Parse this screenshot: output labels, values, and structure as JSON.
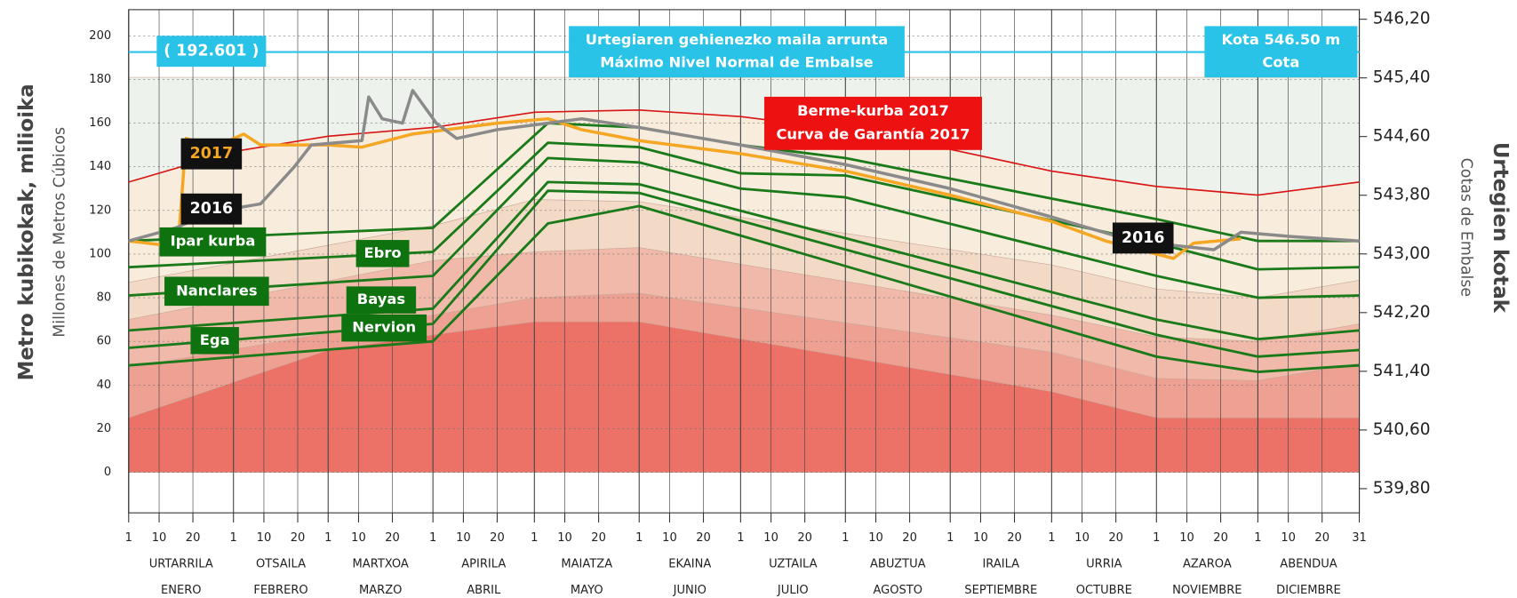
{
  "chart_data": {
    "type": "line",
    "ylabel": "Metro kubikokak, milioika",
    "ylabel_sub": "Millones de Metros Cúbicos",
    "y2label": "Urtegien kotak",
    "y2label_sub": "Cotas de Embalse",
    "xlim": [
      1,
      365
    ],
    "ylim": [
      -18.6,
      212
    ],
    "yticks": [
      0,
      20,
      40,
      60,
      80,
      100,
      120,
      140,
      160,
      180,
      200
    ],
    "y2lim": [
      539.47,
      546.33
    ],
    "y2ticks": [
      {
        "value": 539.8,
        "label": "539,80"
      },
      {
        "value": 540.6,
        "label": "540,60"
      },
      {
        "value": 541.4,
        "label": "541,40"
      },
      {
        "value": 542.2,
        "label": "542,20"
      },
      {
        "value": 543.0,
        "label": "543,00"
      },
      {
        "value": 543.8,
        "label": "543,80"
      },
      {
        "value": 544.6,
        "label": "544,60"
      },
      {
        "value": 545.4,
        "label": "545,40"
      },
      {
        "value": 546.2,
        "label": "546,20"
      }
    ],
    "xticks": [
      1,
      10,
      20,
      {
        "value": 32,
        "label": "1"
      },
      {
        "value": 41,
        "label": "10"
      },
      {
        "value": 51,
        "label": "20"
      },
      {
        "value": 60,
        "label": "1"
      },
      {
        "value": 69,
        "label": "10"
      },
      {
        "value": 79,
        "label": "20"
      },
      {
        "value": 91,
        "label": "1"
      },
      {
        "value": 100,
        "label": "10"
      },
      {
        "value": 110,
        "label": "20"
      },
      {
        "value": 121,
        "label": "1"
      },
      {
        "value": 130,
        "label": "10"
      },
      {
        "value": 140,
        "label": "20"
      },
      {
        "value": 152,
        "label": "1"
      },
      {
        "value": 161,
        "label": "10"
      },
      {
        "value": 171,
        "label": "20"
      },
      {
        "value": 182,
        "label": "1"
      },
      {
        "value": 191,
        "label": "10"
      },
      {
        "value": 201,
        "label": "20"
      },
      {
        "value": 213,
        "label": "1"
      },
      {
        "value": 222,
        "label": "10"
      },
      {
        "value": 232,
        "label": "20"
      },
      {
        "value": 244,
        "label": "1"
      },
      {
        "value": 253,
        "label": "10"
      },
      {
        "value": 263,
        "label": "20"
      },
      {
        "value": 274,
        "label": "1"
      },
      {
        "value": 283,
        "label": "10"
      },
      {
        "value": 293,
        "label": "20"
      },
      {
        "value": 305,
        "label": "1"
      },
      {
        "value": 314,
        "label": "10"
      },
      {
        "value": 324,
        "label": "20"
      },
      {
        "value": 335,
        "label": "1"
      },
      {
        "value": 344,
        "label": "10"
      },
      {
        "value": 354,
        "label": "20"
      },
      {
        "value": 365,
        "label": "31"
      }
    ],
    "months": [
      [
        "URTARRILA",
        "ENERO"
      ],
      [
        "OTSAILA",
        "FEBRERO"
      ],
      [
        "MARTXOA",
        "MARZO"
      ],
      [
        "APIRILA",
        "ABRIL"
      ],
      [
        "MAIATZA",
        "MAYO"
      ],
      [
        "EKAINA",
        "JUNIO"
      ],
      [
        "UZTAILA",
        "JULIO"
      ],
      [
        "ABUZTUA",
        "AGOSTO"
      ],
      [
        "IRAILA",
        "SEPTIEMBRE"
      ],
      [
        "URRIA",
        "OCTUBRE"
      ],
      [
        "AZAROA",
        "NOVIEMBRE"
      ],
      [
        "ABENDUA",
        "DICIEMBRE"
      ]
    ],
    "max_level": {
      "value": 192.601,
      "label": "( 192.601 )",
      "color": "#29c3e8"
    },
    "annotations": {
      "max_eu": "Urtegiaren gehienezko maila arrunta",
      "max_es": "Máximo Nivel Normal de Embalse",
      "kota": "Kota 546.50 m",
      "cota": "Cota"
    },
    "areas": [
      {
        "color": "#edf3ec",
        "x": [
          1,
          365
        ],
        "values": [
          181,
          181
        ]
      },
      {
        "color": "#f8ecdc",
        "x": [
          1,
          32,
          60,
          91,
          121,
          152,
          182,
          213,
          244,
          274,
          305,
          335,
          365
        ],
        "values": [
          133,
          147,
          154,
          158,
          165,
          166,
          163,
          157,
          148,
          138,
          131,
          127,
          133
        ]
      },
      {
        "color": "#f3dac7",
        "x": [
          1,
          91,
          121,
          152,
          274,
          305,
          335,
          365
        ],
        "values": [
          87,
          113,
          125,
          124,
          95,
          84,
          80,
          88
        ]
      },
      {
        "color": "#f0b9a9",
        "x": [
          1,
          91,
          121,
          152,
          274,
          305,
          335,
          365
        ],
        "values": [
          70,
          97,
          101,
          103,
          72,
          62,
          60,
          68
        ]
      },
      {
        "color": "#eea092",
        "x": [
          1,
          91,
          121,
          152,
          274,
          305,
          335,
          365
        ],
        "values": [
          48,
          72,
          80,
          82,
          55,
          43,
          42,
          50
        ]
      },
      {
        "color": "#ec7268",
        "x": [
          1,
          60,
          91,
          121,
          152,
          274,
          305,
          365
        ],
        "values": [
          25,
          56,
          63,
          69,
          69,
          37,
          25,
          25
        ]
      }
    ],
    "series": [
      {
        "label": [
          "Berme-kurba 2017",
          "Curva de Garantía 2017"
        ],
        "color": "#d91414",
        "x": [
          1,
          32,
          60,
          91,
          121,
          152,
          182,
          213,
          244,
          274,
          305,
          335,
          365
        ],
        "values": [
          133,
          147,
          154,
          158,
          165,
          166,
          163,
          157,
          148,
          138,
          131,
          127,
          133
        ]
      },
      {
        "name": "Ipar kurba",
        "color": "#1a7a1a",
        "x": [
          1,
          91,
          125,
          152,
          182,
          213,
          305,
          335,
          365
        ],
        "values": [
          106,
          112,
          160,
          158,
          150,
          144,
          116,
          106,
          106
        ]
      },
      {
        "name": "Ebro",
        "color": "#1a7a1a",
        "x": [
          1,
          91,
          125,
          152,
          182,
          213,
          305,
          335,
          365
        ],
        "values": [
          94,
          101,
          151,
          149,
          137,
          136,
          105,
          93,
          94
        ]
      },
      {
        "name": "Nanclares",
        "color": "#1a7a1a",
        "x": [
          1,
          91,
          125,
          152,
          182,
          213,
          305,
          335,
          365
        ],
        "values": [
          81,
          90,
          144,
          142,
          130,
          126,
          90,
          80,
          81
        ]
      },
      {
        "name": "Bayas",
        "color": "#1a7a1a",
        "x": [
          1,
          91,
          125,
          152,
          305,
          335,
          365
        ],
        "values": [
          65,
          75,
          133,
          132,
          70,
          61,
          65
        ]
      },
      {
        "name": "Nervion",
        "color": "#1a7a1a",
        "x": [
          1,
          91,
          125,
          152,
          305,
          335,
          365
        ],
        "values": [
          57,
          68,
          129,
          128,
          63,
          53,
          56
        ]
      },
      {
        "name": "Ega",
        "color": "#1a7a1a",
        "x": [
          1,
          91,
          125,
          152,
          305,
          335,
          365
        ],
        "values": [
          49,
          60,
          114,
          122,
          53,
          46,
          49
        ]
      },
      {
        "name": "2017",
        "color": "#f5a623",
        "x": [
          1,
          12,
          16,
          18,
          20,
          25,
          35,
          40,
          60,
          70,
          85,
          100,
          110,
          125,
          135,
          152,
          182,
          213,
          244,
          274,
          290,
          305,
          310,
          316,
          330
        ],
        "values": [
          106,
          104,
          112,
          153,
          152,
          148,
          155,
          150,
          150,
          149,
          155,
          158,
          160,
          162,
          157,
          152,
          146,
          138,
          127,
          115,
          106,
          100,
          98,
          105,
          107
        ]
      },
      {
        "name": "2016",
        "color": "#8a8a8a",
        "x": [
          1,
          15,
          25,
          40,
          50,
          55,
          70,
          72,
          76,
          82,
          85,
          92,
          98,
          110,
          125,
          135,
          152,
          182,
          213,
          244,
          274,
          298,
          322,
          330,
          345,
          365
        ],
        "values": [
          106,
          112,
          119,
          123,
          140,
          150,
          152,
          172,
          162,
          160,
          175,
          160,
          153,
          157,
          160,
          162,
          158,
          150,
          141,
          130,
          117,
          106,
          102,
          110,
          108,
          106
        ]
      }
    ]
  }
}
